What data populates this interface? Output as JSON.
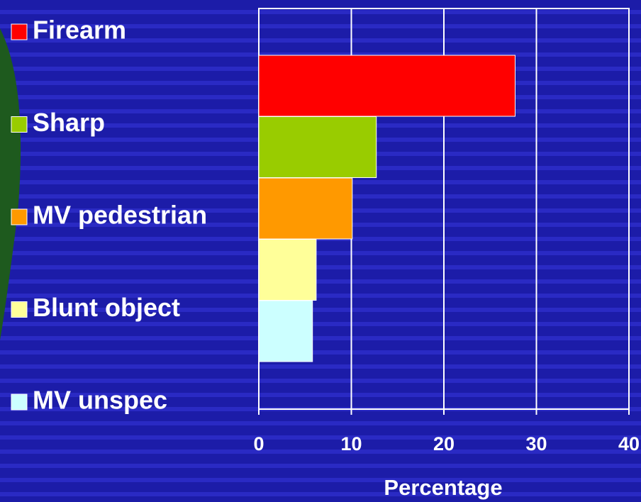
{
  "chart_data": {
    "type": "bar",
    "orientation": "horizontal",
    "categories": [
      "Firearm",
      "Sharp",
      "MV pedestrian",
      "Blunt object",
      "MV unspec"
    ],
    "values": [
      27.7,
      12.7,
      10.1,
      6.2,
      5.8
    ],
    "colors": [
      "#ff0000",
      "#99cc00",
      "#ff9900",
      "#ffff99",
      "#ccffff"
    ],
    "xlim": [
      0,
      40
    ],
    "xticks": [
      0,
      10,
      20,
      30,
      40
    ],
    "x_label": "Percentage",
    "grid": true,
    "legend": "left"
  }
}
